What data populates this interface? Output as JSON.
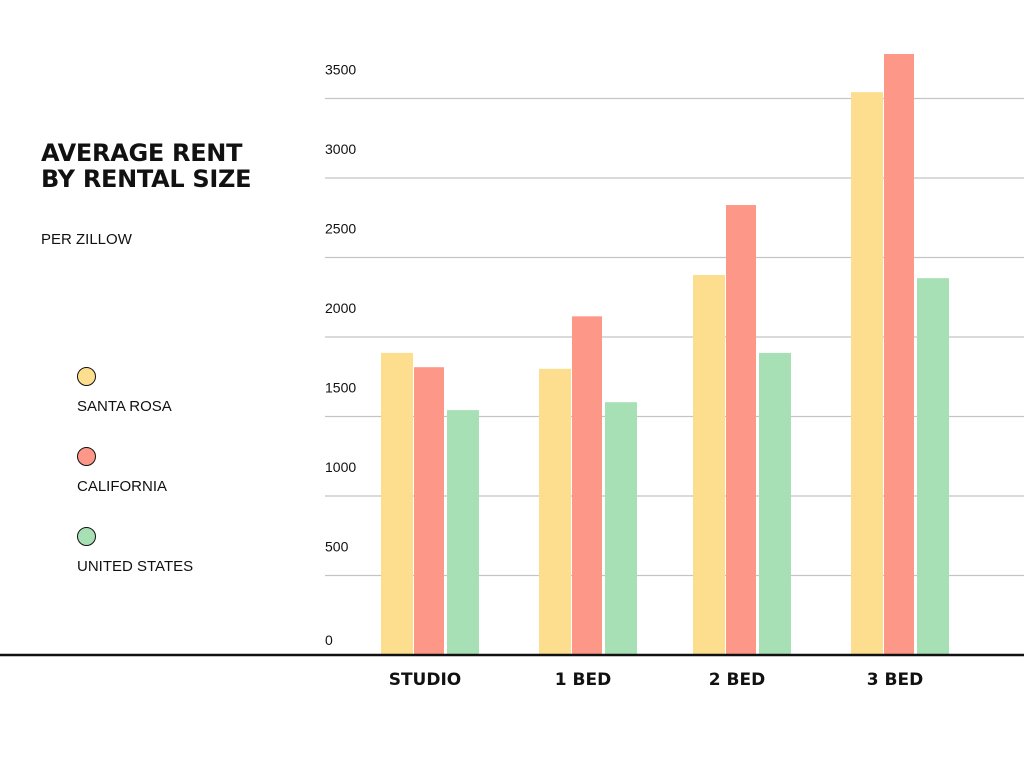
{
  "chart_data": {
    "type": "bar",
    "title": "AVERAGE RENT BY RENTAL SIZE",
    "subtitle": "PER ZILLOW",
    "categories": [
      "STUDIO",
      "1 BED",
      "2 BED",
      "3 BED"
    ],
    "series": [
      {
        "name": "SANTA ROSA",
        "color": "#FCDE8E",
        "values": [
          1900,
          1800,
          2390,
          3540
        ]
      },
      {
        "name": "CALIFORNIA",
        "color": "#FD9787",
        "values": [
          1810,
          2130,
          2830,
          3780
        ]
      },
      {
        "name": "UNITED STATES",
        "color": "#A8E0B5",
        "values": [
          1540,
          1590,
          1900,
          2370
        ]
      }
    ],
    "yticks": [
      0,
      500,
      1000,
      1500,
      2000,
      2500,
      3000,
      3500
    ],
    "ylim": [
      0,
      3950
    ],
    "grid": true,
    "legend_position": "left"
  }
}
